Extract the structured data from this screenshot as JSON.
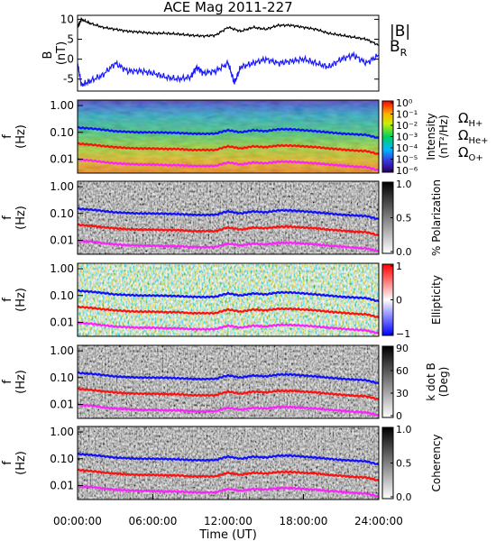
{
  "title": "ACE Mag 2011-227",
  "colors": {
    "total_field": "#000000",
    "radial_field": "#1a1aff",
    "h_line": "#1010ff",
    "he_line": "#ff1010",
    "o_line": "#ff20ff"
  },
  "chart_data": [
    {
      "type": "line",
      "panel": "magnetic-field",
      "ylabel": "B\n(nT)",
      "ylim": [
        -8,
        11
      ],
      "yticks": [
        "10",
        "5",
        "0",
        "-5"
      ],
      "xlim": [
        0,
        24
      ],
      "legend": [
        "|B|",
        "B_R"
      ],
      "series": [
        {
          "name": "|B|",
          "x": [
            0,
            0.3,
            1,
            2,
            3,
            4,
            5,
            6,
            7,
            8,
            9,
            10,
            11,
            12,
            13,
            14,
            15,
            16,
            17,
            18,
            19,
            20,
            21,
            22,
            23,
            24
          ],
          "y": [
            8,
            10,
            9,
            8,
            7.5,
            7,
            6.8,
            6.5,
            6.5,
            6.3,
            6,
            5.8,
            6,
            8,
            7,
            8,
            7.5,
            8.5,
            8.5,
            8,
            7.5,
            6.5,
            6,
            5.5,
            5,
            3.5
          ]
        },
        {
          "name": "B_R",
          "x": [
            0,
            0.3,
            1,
            2,
            3,
            4,
            5,
            6,
            7,
            8,
            9,
            9.5,
            10,
            11,
            12,
            12.5,
            13,
            14,
            15,
            16,
            17,
            18,
            19,
            20,
            21,
            22,
            23,
            24
          ],
          "y": [
            -1,
            -6.5,
            -5.5,
            -4,
            -1,
            -3,
            -3,
            -3.5,
            -4.5,
            -5,
            -4.5,
            -2,
            -3.5,
            -3,
            -1,
            -6,
            -2,
            -1,
            0,
            -1,
            -0.5,
            0,
            -1,
            -2,
            0,
            1,
            -1,
            1
          ]
        }
      ]
    },
    {
      "type": "heatmap",
      "panel": "intensity",
      "ylabel": "f\n(Hz)",
      "yticks": [
        "1.00",
        "0.10",
        "0.01"
      ],
      "colorbar_label": "Intensity\n(nT²/Hz)",
      "colorbar_ticks": [
        "10⁰",
        "10⁻¹",
        "10⁻²",
        "10⁻³",
        "10⁻⁴",
        "10⁻⁵",
        "10⁻⁶"
      ],
      "legend": [
        "ΩH+",
        "ΩHe+",
        "ΩO+"
      ]
    },
    {
      "type": "heatmap",
      "panel": "polarization",
      "ylabel": "f\n(Hz)",
      "yticks": [
        "1.00",
        "0.10",
        "0.01"
      ],
      "colorbar_label": "% Polarization",
      "colorbar_ticks": [
        "1.0",
        "0.5",
        "0.0"
      ]
    },
    {
      "type": "heatmap",
      "panel": "ellipticity",
      "ylabel": "f\n(Hz)",
      "yticks": [
        "1.00",
        "0.10",
        "0.01"
      ],
      "colorbar_label": "Ellipticity",
      "colorbar_ticks": [
        "1",
        "0",
        "−1"
      ]
    },
    {
      "type": "heatmap",
      "panel": "k-dot-b",
      "ylabel": "f\n(Hz)",
      "yticks": [
        "1.00",
        "0.10",
        "0.01"
      ],
      "colorbar_label": "k dot B\n(Deg)",
      "colorbar_ticks": [
        "90",
        "60",
        "30",
        "0"
      ]
    },
    {
      "type": "heatmap",
      "panel": "coherency",
      "ylabel": "f\n(Hz)",
      "yticks": [
        "1.00",
        "0.10",
        "0.01"
      ],
      "colorbar_label": "Coherency",
      "colorbar_ticks": [
        "1.0",
        "0.5",
        "0.0"
      ]
    }
  ],
  "gyrofrequency_lines": {
    "x": [
      0,
      1,
      2,
      3,
      4,
      5,
      6,
      7,
      8,
      9,
      10,
      11,
      12,
      13,
      14,
      15,
      16,
      17,
      18,
      19,
      20,
      21,
      22,
      23,
      24
    ],
    "h_hz": [
      0.15,
      0.14,
      0.125,
      0.11,
      0.105,
      0.1,
      0.1,
      0.098,
      0.095,
      0.09,
      0.088,
      0.09,
      0.12,
      0.1,
      0.12,
      0.11,
      0.13,
      0.13,
      0.12,
      0.11,
      0.1,
      0.09,
      0.085,
      0.08,
      0.06
    ],
    "he_hz": [
      0.038,
      0.035,
      0.031,
      0.028,
      0.026,
      0.025,
      0.025,
      0.024,
      0.024,
      0.022,
      0.022,
      0.022,
      0.03,
      0.025,
      0.03,
      0.028,
      0.032,
      0.032,
      0.03,
      0.028,
      0.025,
      0.023,
      0.021,
      0.02,
      0.015
    ],
    "o_hz": [
      0.0095,
      0.009,
      0.0078,
      0.007,
      0.0066,
      0.0063,
      0.0063,
      0.006,
      0.006,
      0.0056,
      0.0055,
      0.0056,
      0.0075,
      0.0063,
      0.0075,
      0.007,
      0.008,
      0.008,
      0.0075,
      0.007,
      0.0063,
      0.0058,
      0.0053,
      0.005,
      0.0038
    ]
  },
  "x_axis": {
    "ticks": [
      "00:00:00",
      "06:00:00",
      "12:00:00",
      "18:00:00",
      "24:00:00"
    ],
    "label": "Time (UT)"
  }
}
